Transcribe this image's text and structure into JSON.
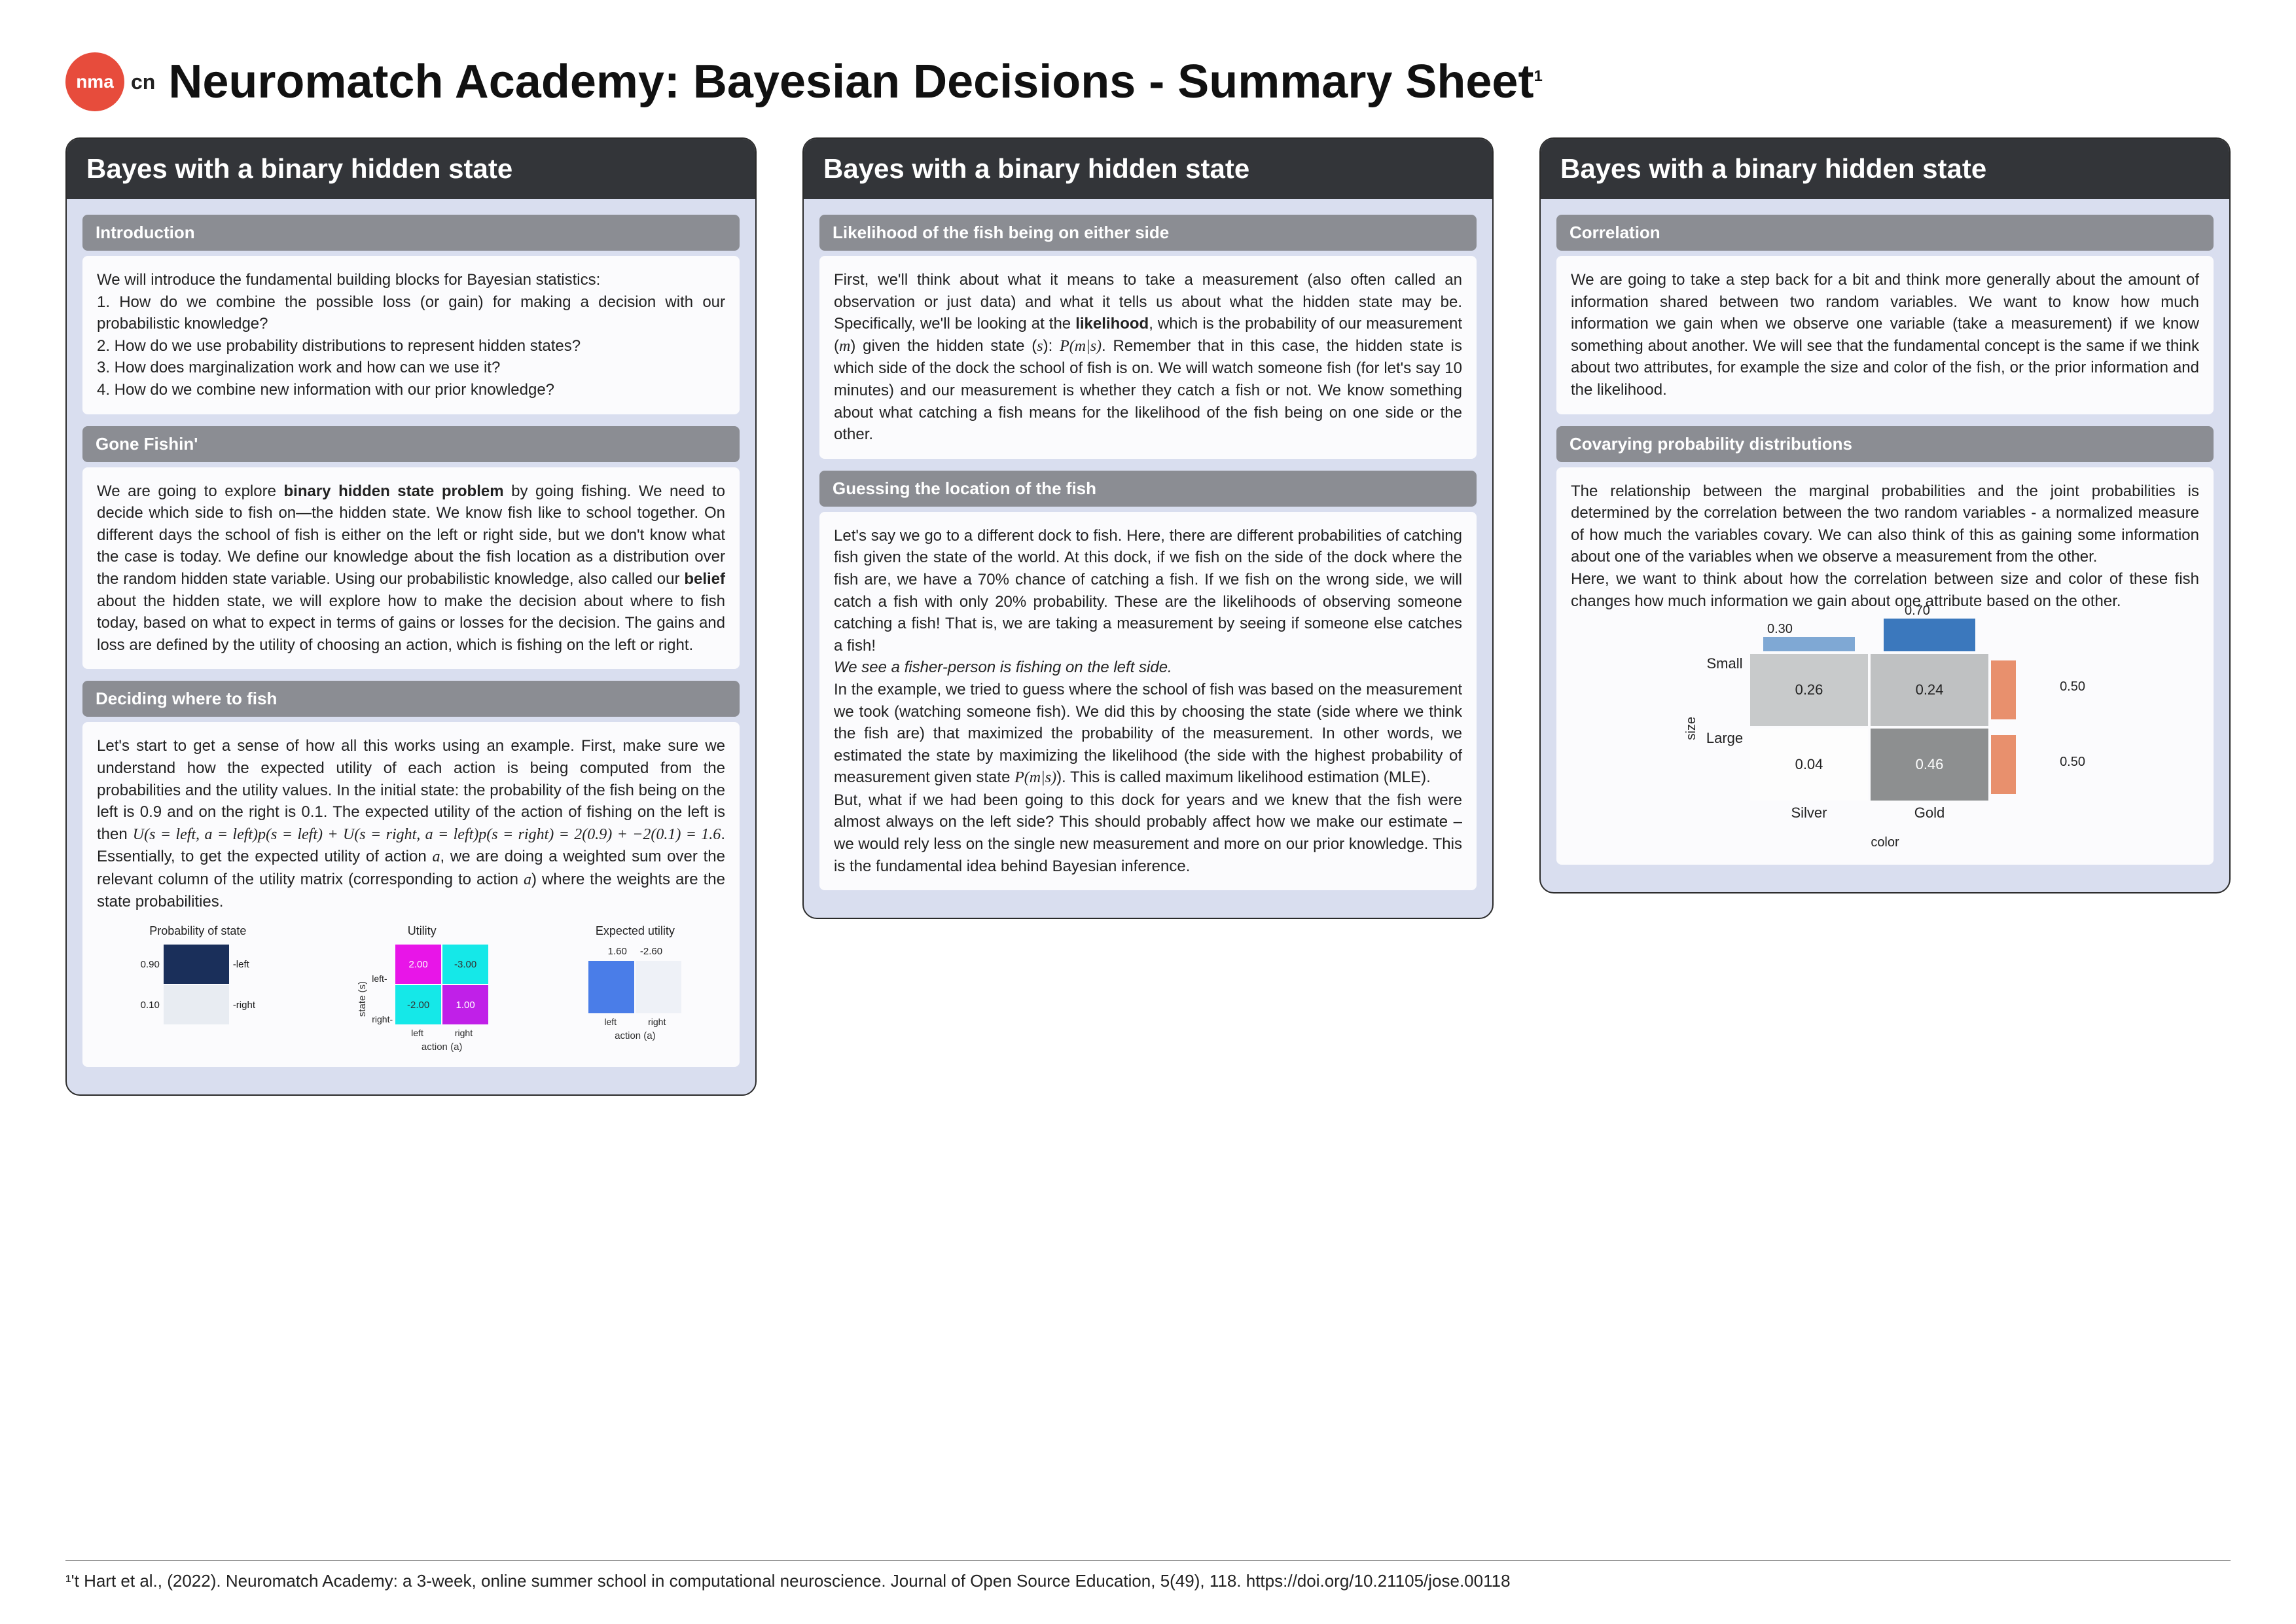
{
  "header": {
    "logo_text": "nma",
    "logo_suffix": "cn",
    "title": "Neuromatch Academy: Bayesian Decisions - Summary Sheet",
    "sup": "1"
  },
  "columns": [
    {
      "title": "Bayes with a binary hidden state",
      "sections": [
        {
          "header": "Introduction",
          "body": "We will introduce the fundamental building blocks for Bayesian statistics:\n1. How do we combine the possible loss (or gain) for making a decision with our probabilistic knowledge?\n2. How do we use probability distributions to represent hidden states?\n3. How does marginalization work and how can we use it?\n4. How do we combine new information with our prior knowledge?"
        },
        {
          "header": "Gone Fishin'",
          "body_html": "We are going to explore <b>binary hidden state problem</b> by going fishing. We need to decide which side to fish on—the hidden state. We know fish like to school together. On different days the school of fish is either on the left or right side, but we don't know what the case is today. We define our knowledge about the fish location as a distribution over the random hidden state variable. Using our probabilistic knowledge, also called our <b>belief</b> about the hidden state, we will explore how to make the decision about where to fish today, based on what to expect in terms of gains or losses for the decision. The gains and loss are defined by the utility of choosing an action, which is fishing on the left or right."
        },
        {
          "header": "Deciding where to fish",
          "body_html": "Let's start to get a sense of how all this works using an example. First, make sure we understand how the expected utility of each action is being computed from the probabilities and the utility values. In the initial state: the probability of the fish being on the left is 0.9 and on the right is 0.1. The expected utility of the action of fishing on the left is then <span class='math'>U(s = left, a = left)p(s = left) + U(s = right, a = left)p(s = right) = 2(0.9) + −2(0.1) = 1.6</span>. Essentially, to get the expected utility of action <span class='math'>a</span>, we are doing a weighted sum over the relevant column of the utility matrix (corresponding to action <span class='math'>a</span>) where the weights are the state probabilities.",
          "has_chart1": true
        }
      ]
    },
    {
      "title": "Bayes with a binary hidden state",
      "sections": [
        {
          "header": "Likelihood of the fish being on either side",
          "body_html": "First, we'll think about what it means to take a measurement (also often called an observation or just data) and what it tells us about what the hidden state may be. Specifically, we'll be looking at the <b>likelihood</b>, which is the probability of our measurement (<span class='math'>m</span>) given the hidden state (<span class='math'>s</span>): <span class='math'>P(m|s)</span>. Remember that in this case, the hidden state is which side of the dock the school of fish is on. We will watch someone fish (for let's say 10 minutes) and our measurement is whether they catch a fish or not. We know something about what catching a fish means for the likelihood of the fish being on one side or the other."
        },
        {
          "header": "Guessing the location of the fish",
          "body_html": "Let's say we go to a different dock to fish. Here, there are different probabilities of catching fish given the state of the world. At this dock, if we fish on the side of the dock where the fish are, we have a 70% chance of catching a fish. If we fish on the wrong side, we will catch a fish with only 20% probability. These are the likelihoods of observing someone catching a fish! That is, we are taking a measurement by seeing if someone else catches a fish!<br><i>We see a fisher-person is fishing on the left side.</i><br>In the example, we tried to guess where the school of fish was based on the measurement we took (watching someone fish). We did this by choosing the state (side where we think the fish are) that maximized the probability of the measurement. In other words, we estimated the state by maximizing the likelihood (the side with the highest probability of measurement given state <span class='math'>P(m|s)</span>). This is called maximum likelihood estimation (MLE).<br>But, what if we had been going to this dock for years and we knew that the fish were almost always on the left side? This should probably affect how we make our estimate – we would rely less on the single new measurement and more on our prior knowledge. This is the fundamental idea behind Bayesian inference."
        }
      ]
    },
    {
      "title": "Bayes with a binary hidden state",
      "sections": [
        {
          "header": "Correlation",
          "body": "We are going to take a step back for a bit and think more generally about the amount of information shared between two random variables. We want to know how much information we gain when we observe one variable (take a measurement) if we know something about another. We will see that the fundamental concept is the same if we think about two attributes, for example the size and color of the fish, or the prior information and the likelihood."
        },
        {
          "header": "Covarying probability distributions",
          "body_html": "The relationship between the marginal probabilities and the joint probabilities is determined by the correlation between the two random variables - a normalized measure of how much the variables covary. We can also think of this as gaining some information about one of the variables when we observe a measurement from the other.<br>Here, we want to think about how the correlation between size and color of these fish changes how much information we gain about one attribute based on the other.",
          "has_heatmap": true
        }
      ]
    }
  ],
  "chart1": {
    "prob_title": "Probability of state",
    "util_title": "Utility",
    "exp_title": "Expected utility",
    "prob_left": "0.90",
    "prob_right": "0.10",
    "util": [
      [
        "2.00",
        "-3.00"
      ],
      [
        "-2.00",
        "1.00"
      ]
    ],
    "exp": [
      "1.60",
      "-2.60"
    ],
    "state_labels": [
      "left",
      "right"
    ],
    "action_labels": [
      "left",
      "right"
    ],
    "colors": {
      "dark_navy": "#1a2f5a",
      "light": "#e8ecf2",
      "magenta": "#e815e8",
      "cyan": "#15e8e8",
      "purple": "#8a15e8",
      "blue": "#4a7de8"
    }
  },
  "heatmap": {
    "top_vals": [
      "0.30",
      "0.70"
    ],
    "right_vals": [
      "0.50",
      "0.50"
    ],
    "cells": [
      [
        "0.26",
        "0.24"
      ],
      [
        "0.04",
        "0.46"
      ]
    ],
    "row_labels": [
      "Small",
      "Large"
    ],
    "col_labels": [
      "Silver",
      "Gold"
    ],
    "y_axis": "size",
    "x_axis": "color",
    "colors": {
      "c00": "#c8cacb",
      "c01": "#bfc1c2",
      "c10": "#fdfdfd",
      "c11": "#8d8f90",
      "top0": "#7fa8d4",
      "top1": "#3b78bd",
      "right0": "#e8906d",
      "right1": "#e8906d"
    }
  },
  "footnote": "¹'t Hart et al., (2022). Neuromatch Academy: a 3-week, online summer school in computational neuroscience. Journal of Open Source Education, 5(49), 118. https://doi.org/10.21105/jose.00118"
}
